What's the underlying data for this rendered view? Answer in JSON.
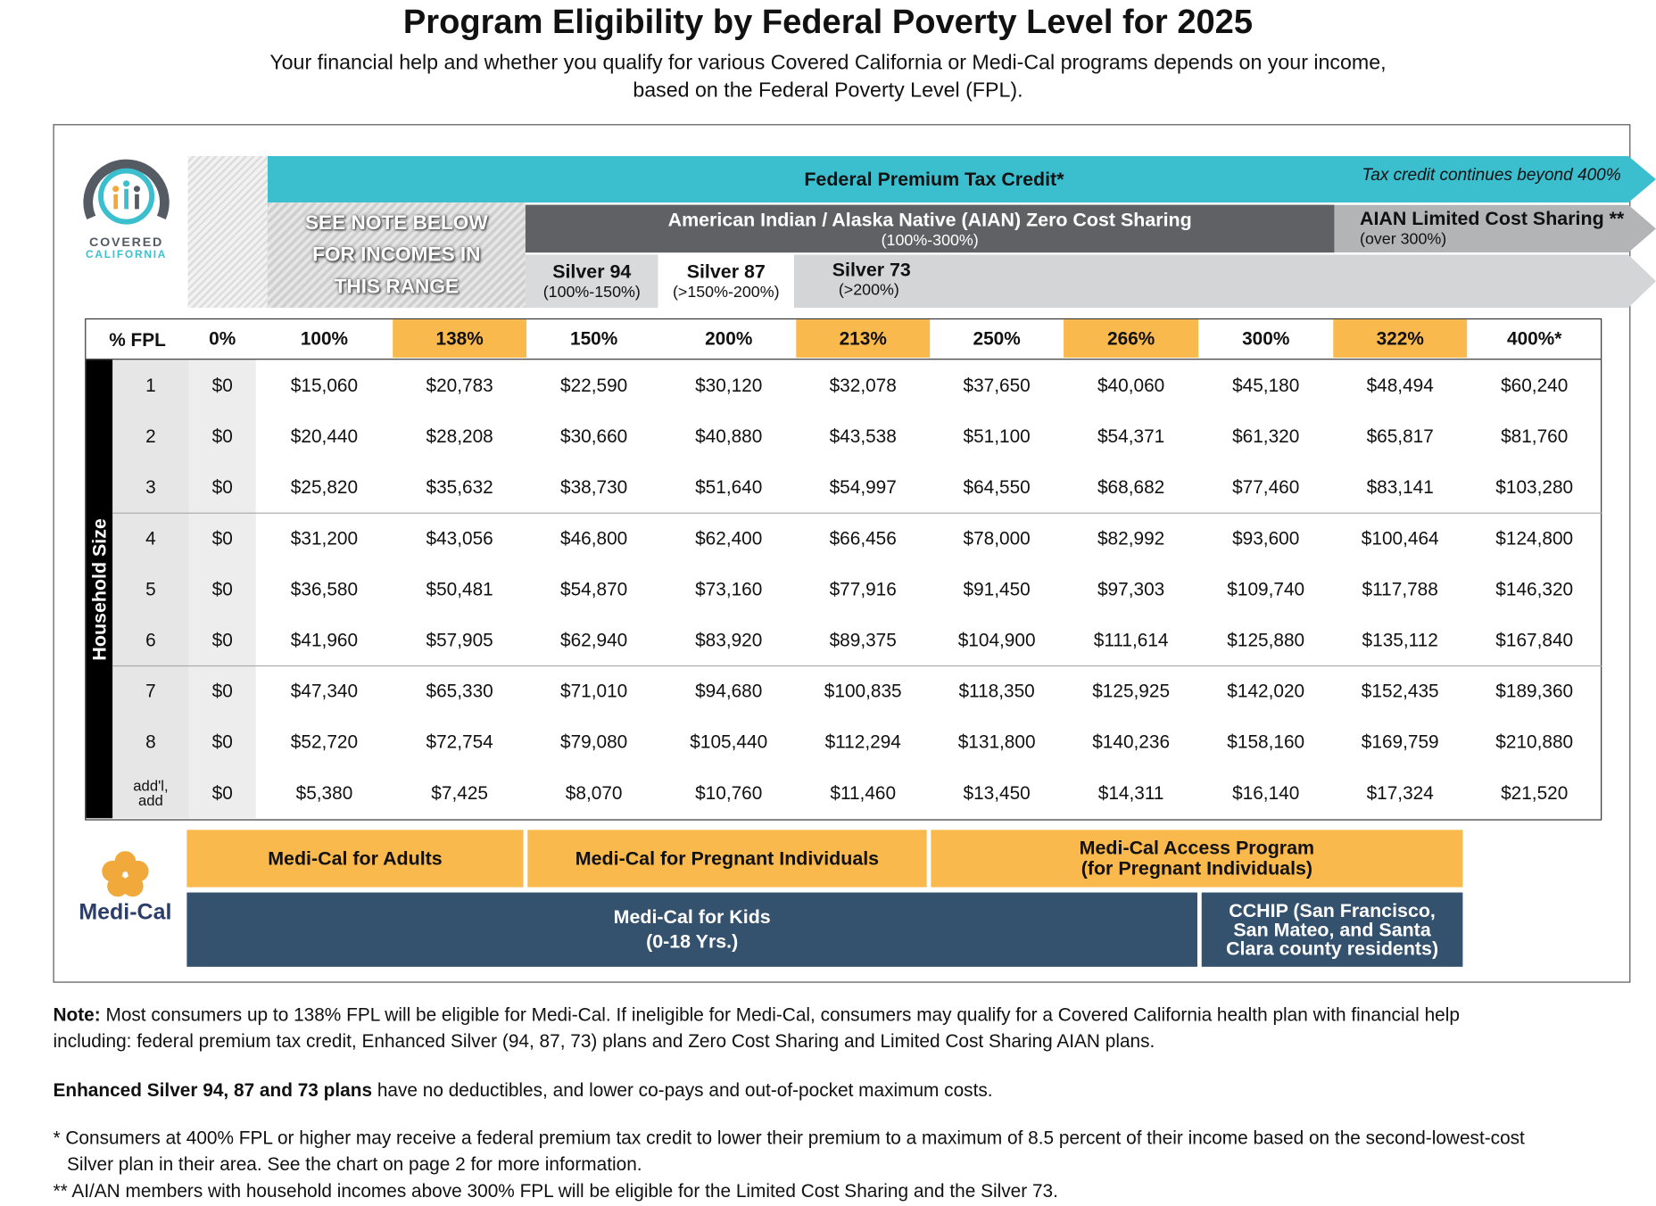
{
  "header": {
    "title": "Program Eligibility by Federal Poverty Level for 2025",
    "subtitle_line1": "Your financial help and whether you qualify for various Covered California or Medi-Cal programs depends on your income,",
    "subtitle_line2": "based on the Federal Poverty Level (FPL)."
  },
  "logo": {
    "line1": "COVERED",
    "line2": "CALIFORNIA"
  },
  "programs": {
    "ptc": {
      "label": "Federal Premium Tax Credit*",
      "note": "Tax credit continues beyond 400%"
    },
    "see_note": [
      "SEE NOTE BELOW",
      "FOR INCOMES IN",
      "THIS RANGE"
    ],
    "aian_zero": {
      "label": "American Indian / Alaska Native (AIAN) Zero Cost Sharing",
      "range": "(100%-300%)"
    },
    "aian_limited": {
      "label": "AIAN Limited Cost Sharing **",
      "range": "(over 300%)"
    },
    "silver": [
      {
        "label": "Silver 94",
        "range": "(100%-150%)"
      },
      {
        "label": "Silver 87",
        "range": "(>150%-200%)"
      },
      {
        "label": "Silver 73",
        "range": "(>200%)"
      }
    ]
  },
  "table": {
    "corner": "% FPL",
    "row_group": "Household Size",
    "columns": [
      "0%",
      "100%",
      "138%",
      "150%",
      "200%",
      "213%",
      "250%",
      "266%",
      "300%",
      "322%",
      "400%*"
    ],
    "rows": [
      {
        "size": "1",
        "values": [
          "$0",
          "$15,060",
          "$20,783",
          "$22,590",
          "$30,120",
          "$32,078",
          "$37,650",
          "$40,060",
          "$45,180",
          "$48,494",
          "$60,240"
        ]
      },
      {
        "size": "2",
        "values": [
          "$0",
          "$20,440",
          "$28,208",
          "$30,660",
          "$40,880",
          "$43,538",
          "$51,100",
          "$54,371",
          "$61,320",
          "$65,817",
          "$81,760"
        ]
      },
      {
        "size": "3",
        "values": [
          "$0",
          "$25,820",
          "$35,632",
          "$38,730",
          "$51,640",
          "$54,997",
          "$64,550",
          "$68,682",
          "$77,460",
          "$83,141",
          "$103,280"
        ]
      },
      {
        "size": "4",
        "values": [
          "$0",
          "$31,200",
          "$43,056",
          "$46,800",
          "$62,400",
          "$66,456",
          "$78,000",
          "$82,992",
          "$93,600",
          "$100,464",
          "$124,800"
        ]
      },
      {
        "size": "5",
        "values": [
          "$0",
          "$36,580",
          "$50,481",
          "$54,870",
          "$73,160",
          "$77,916",
          "$91,450",
          "$97,303",
          "$109,740",
          "$117,788",
          "$146,320"
        ]
      },
      {
        "size": "6",
        "values": [
          "$0",
          "$41,960",
          "$57,905",
          "$62,940",
          "$83,920",
          "$89,375",
          "$104,900",
          "$111,614",
          "$125,880",
          "$135,112",
          "$167,840"
        ]
      },
      {
        "size": "7",
        "values": [
          "$0",
          "$47,340",
          "$65,330",
          "$71,010",
          "$94,680",
          "$100,835",
          "$118,350",
          "$125,925",
          "$142,020",
          "$152,435",
          "$189,360"
        ]
      },
      {
        "size": "8",
        "values": [
          "$0",
          "$52,720",
          "$72,754",
          "$79,080",
          "$105,440",
          "$112,294",
          "$131,800",
          "$140,236",
          "$158,160",
          "$169,759",
          "$210,880"
        ]
      },
      {
        "size": "add'l, add",
        "values": [
          "$0",
          "$5,380",
          "$7,425",
          "$8,070",
          "$10,760",
          "$11,460",
          "$13,450",
          "$14,311",
          "$16,140",
          "$17,324",
          "$21,520"
        ]
      }
    ]
  },
  "medi_cal": {
    "logo": "Medi-Cal",
    "adults": "Medi-Cal for Adults",
    "pregnant": "Medi-Cal for Pregnant Individuals",
    "access": [
      "Medi-Cal Access Program",
      "(for Pregnant Individuals)"
    ],
    "kids": [
      "Medi-Cal for Kids",
      "(0-18 Yrs.)"
    ],
    "cchip": [
      "CCHIP (San Francisco,",
      "San Mateo, and Santa",
      "Clara county residents)"
    ]
  },
  "notes": [
    {
      "bold": "Note:",
      "text": " Most consumers up to 138% FPL will be eligible for Medi-Cal. If ineligible for Medi-Cal, consumers may qualify for a Covered California health plan with financial help including: federal premium tax credit, Enhanced Silver (94, 87, 73) plans and Zero Cost Sharing and Limited Cost Sharing AIAN plans."
    },
    {
      "bold": "Enhanced Silver 94, 87 and 73 plans",
      "text": " have no deductibles, and lower co-pays and out-of-pocket maximum costs."
    },
    {
      "text": "* Consumers at 400% FPL or higher may receive a federal premium tax credit to lower their premium to a maximum of 8.5 percent of their income based on the second-lowest-cost Silver plan in their area. See the chart on page 2 for more information."
    },
    {
      "text": "** AI/AN members with household incomes above 300% FPL will be eligible for the Limited Cost Sharing and the Silver 73."
    }
  ]
}
